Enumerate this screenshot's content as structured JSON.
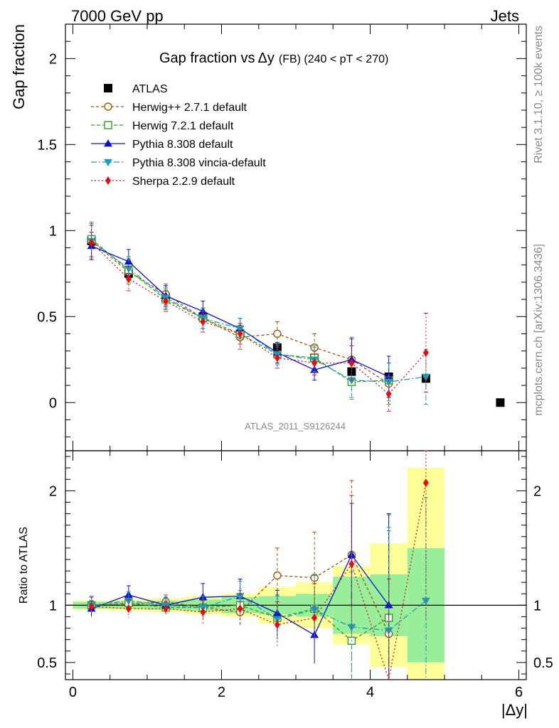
{
  "header": {
    "left": "7000 GeV pp",
    "right": "Jets"
  },
  "side_text": {
    "rivet": "Rivet 3.1.10, ≥ 100k events",
    "mcplots": "mcplots.cern.ch [arXiv:1306.3436]"
  },
  "chart_data": {
    "type": "scatter",
    "title_main": "Gap fraction vs",
    "title_symbol": "Δy",
    "title_suffix": "(FB)  (240 < pT < 270)",
    "analysis_label": "ATLAS_2011_S9126244",
    "ylabel_top": "Gap fraction",
    "ylabel_bottom": "Ratio to ATLAS",
    "xlabel": "|Δy|",
    "xlim": [
      -0.1,
      6.1
    ],
    "ylim_top": [
      -0.28,
      2.2
    ],
    "ylim_bottom": [
      0.35,
      2.35
    ],
    "x_ticks": [
      "0",
      "2",
      "4",
      "6"
    ],
    "y_ticks_top": [
      "0",
      "0.5",
      "1",
      "1.5",
      "2"
    ],
    "y_ticks_bottom": [
      "0.5",
      "1",
      "2"
    ],
    "x": [
      0.25,
      0.75,
      1.25,
      1.75,
      2.25,
      2.75,
      3.25,
      3.75,
      4.25,
      4.75,
      5.75
    ],
    "data": {
      "name": "ATLAS",
      "color": "#000000",
      "values": [
        0.94,
        0.75,
        0.61,
        0.5,
        0.4,
        0.32,
        0.26,
        0.18,
        0.15,
        0.14,
        0.0
      ],
      "band_stat": [
        0.03,
        0.03,
        0.04,
        0.05,
        0.07,
        0.08,
        0.1,
        0.25,
        0.27,
        0.5,
        null
      ],
      "band_total": [
        0.04,
        0.05,
        0.06,
        0.08,
        0.1,
        0.16,
        0.2,
        0.34,
        0.54,
        1.2,
        null
      ]
    },
    "series": [
      {
        "name": "Herwig++ 2.7.1 default",
        "color": "#a0560a",
        "marker": "open-circle",
        "dash": "4,3",
        "values": [
          0.94,
          0.76,
          0.63,
          0.49,
          0.38,
          0.4,
          0.32,
          0.25,
          0.11
        ],
        "errors": [
          0.1,
          0.07,
          0.06,
          0.06,
          0.07,
          0.07,
          0.08,
          0.13,
          0.12
        ],
        "ratio": [
          1.0,
          1.01,
          1.03,
          0.98,
          0.94,
          1.26,
          1.24,
          1.44,
          0.75
        ],
        "ratio_errors": [
          0.08,
          0.08,
          0.06,
          0.1,
          0.13,
          0.24,
          0.4,
          0.65,
          0.9
        ]
      },
      {
        "name": "Herwig 7.2.1 default",
        "color": "#3c9a1c",
        "marker": "open-square",
        "dash": "5,3",
        "values": [
          0.95,
          0.77,
          0.6,
          0.49,
          0.4,
          0.28,
          0.26,
          0.12,
          0.13
        ],
        "errors": [
          0.1,
          0.07,
          0.06,
          0.06,
          0.06,
          0.06,
          0.07,
          0.1,
          0.1
        ],
        "ratio": [
          1.0,
          1.02,
          0.98,
          0.98,
          1.0,
          0.89,
          0.97,
          0.69,
          0.89
        ],
        "ratio_errors": [
          0.08,
          0.08,
          0.06,
          0.1,
          0.13,
          0.2,
          0.3,
          0.6,
          0.9
        ]
      },
      {
        "name": "Pythia 8.308 default",
        "color": "#1010cc",
        "marker": "triangle-up",
        "dash": "",
        "values": [
          0.91,
          0.82,
          0.62,
          0.53,
          0.43,
          0.29,
          0.19,
          0.25,
          0.15
        ],
        "errors": [
          0.08,
          0.07,
          0.06,
          0.06,
          0.06,
          0.06,
          0.06,
          0.12,
          0.12
        ],
        "ratio": [
          0.97,
          1.09,
          1.0,
          1.07,
          1.08,
          0.93,
          0.74,
          1.44,
          1.0
        ],
        "ratio_errors": [
          0.07,
          0.08,
          0.07,
          0.12,
          0.15,
          0.2,
          0.25,
          0.45,
          0.8
        ]
      },
      {
        "name": "Pythia 8.308 vincia-default",
        "color": "#1a9fb8",
        "marker": "triangle-down",
        "dash": "8,3,2,3",
        "values": [
          0.94,
          0.78,
          0.61,
          0.49,
          0.43,
          0.28,
          0.25,
          0.13,
          0.12,
          0.15
        ],
        "errors": [
          0.1,
          0.07,
          0.06,
          0.06,
          0.06,
          0.06,
          0.07,
          0.1,
          0.11,
          0.16
        ],
        "ratio": [
          1.0,
          1.04,
          1.0,
          0.98,
          1.08,
          0.88,
          0.96,
          0.81,
          0.78,
          1.04
        ],
        "ratio_errors": [
          0.08,
          0.08,
          0.06,
          0.1,
          0.13,
          0.2,
          0.3,
          0.65,
          0.9,
          0.9
        ]
      },
      {
        "name": "Sherpa 2.2.9 default",
        "color": "#e01010",
        "marker": "diamond",
        "dash": "2,3",
        "values": [
          0.93,
          0.72,
          0.59,
          0.47,
          0.4,
          0.26,
          0.23,
          0.23,
          0.05,
          0.29
        ],
        "errors": [
          0.1,
          0.07,
          0.06,
          0.06,
          0.06,
          0.06,
          0.07,
          0.1,
          0.1,
          0.23
        ],
        "ratio": [
          0.99,
          0.97,
          0.97,
          0.94,
          0.97,
          0.83,
          0.89,
          1.36,
          0.33,
          2.07
        ],
        "ratio_errors": [
          0.08,
          0.08,
          0.06,
          0.1,
          0.13,
          0.2,
          0.3,
          0.6,
          0.9,
          1.2
        ]
      }
    ]
  }
}
